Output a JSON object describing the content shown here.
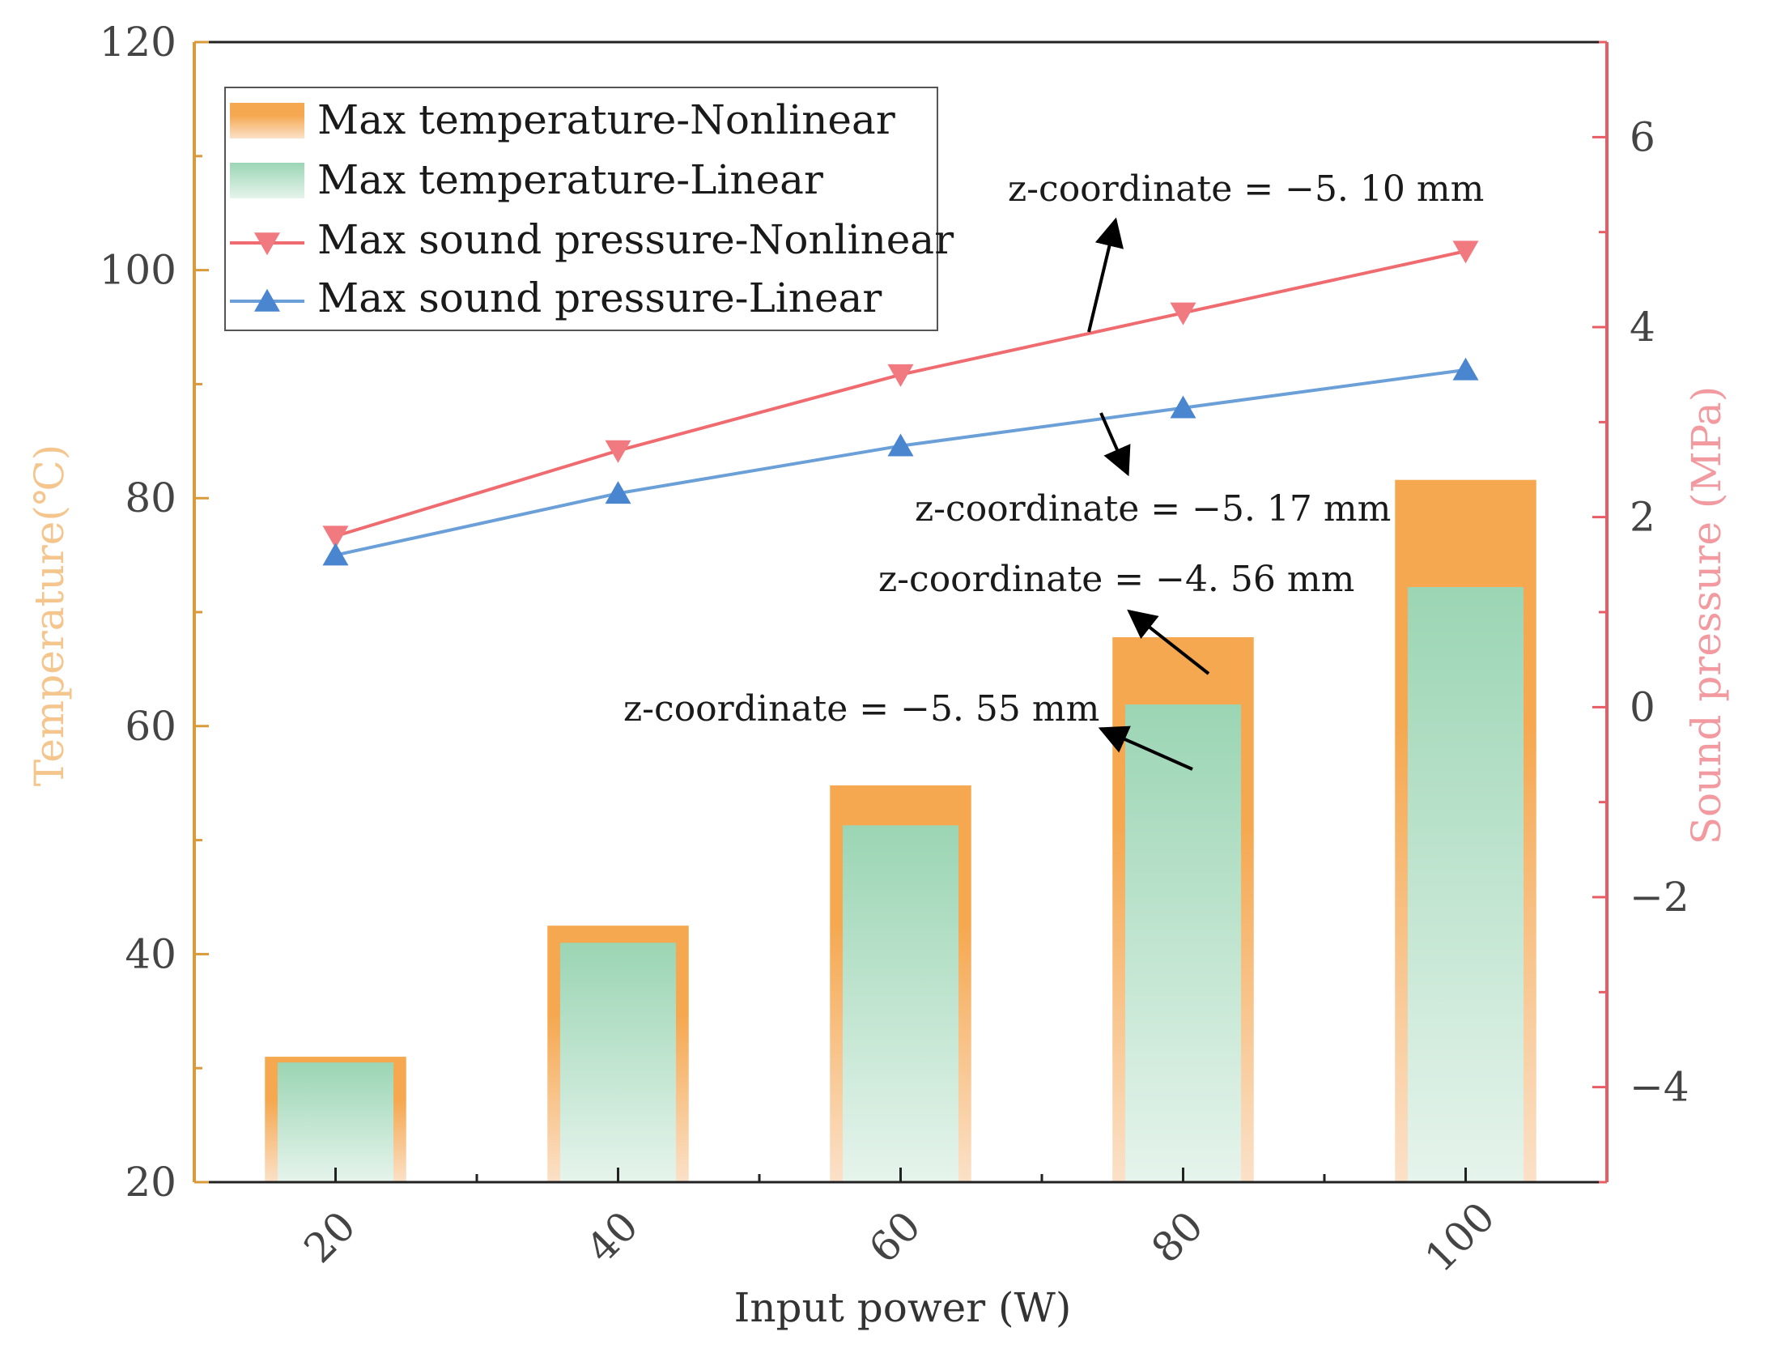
{
  "chart_data": {
    "type": "bar",
    "title": "",
    "xlabel": "Input power (W)",
    "ylabel": "Temperature(℃)",
    "y2label": "Sound pressure (MPa)",
    "categories": [
      "20",
      "40",
      "60",
      "80",
      "100"
    ],
    "ylim": [
      20,
      120
    ],
    "y2lim": [
      -5,
      7
    ],
    "yticks": [
      "20",
      "40",
      "60",
      "80",
      "100",
      "120"
    ],
    "y2ticks": [
      "−4",
      "−2",
      "0",
      "2",
      "4",
      "6"
    ],
    "legend_position": "top-left",
    "series": [
      {
        "name": "Max temperature-Nonlinear",
        "kind": "bar",
        "axis": "left",
        "values": [
          31.0,
          42.5,
          54.8,
          67.8,
          81.6
        ]
      },
      {
        "name": "Max temperature-Linear",
        "kind": "bar",
        "axis": "left",
        "values": [
          30.5,
          41.0,
          51.3,
          61.9,
          72.2
        ]
      },
      {
        "name": "Max sound pressure-Nonlinear",
        "kind": "line",
        "axis": "right",
        "marker": "triangle-down",
        "values": [
          1.8,
          2.7,
          3.5,
          4.15,
          4.8
        ]
      },
      {
        "name": "Max sound pressure-Linear",
        "kind": "line",
        "axis": "right",
        "marker": "triangle-up",
        "values": [
          1.6,
          2.25,
          2.75,
          3.15,
          3.55
        ]
      }
    ],
    "annotations": [
      "z-coordinate  =  −5. 10 mm",
      "z-coordinate  =  −5. 17 mm",
      "z-coordinate  =  −4. 56 mm",
      "z-coordinate  =  −5. 55 mm"
    ],
    "colors": {
      "left_axis": "#d99a3a",
      "right_axis": "#e85c63",
      "bar_nonlinear": "#f5a850",
      "bar_nonlinear_light": "#fbe1c8",
      "bar_linear": "#9bd5b4",
      "bar_linear_light": "#e6f4ec",
      "line_nonlinear": "#ef6b6f",
      "line_linear": "#6a9fd8",
      "marker_nonlinear": "#f07a80",
      "marker_linear": "#4a86cf",
      "axis_text": "#444444",
      "y_title": "#f4c58c",
      "y2_title": "#f29aa0"
    }
  }
}
